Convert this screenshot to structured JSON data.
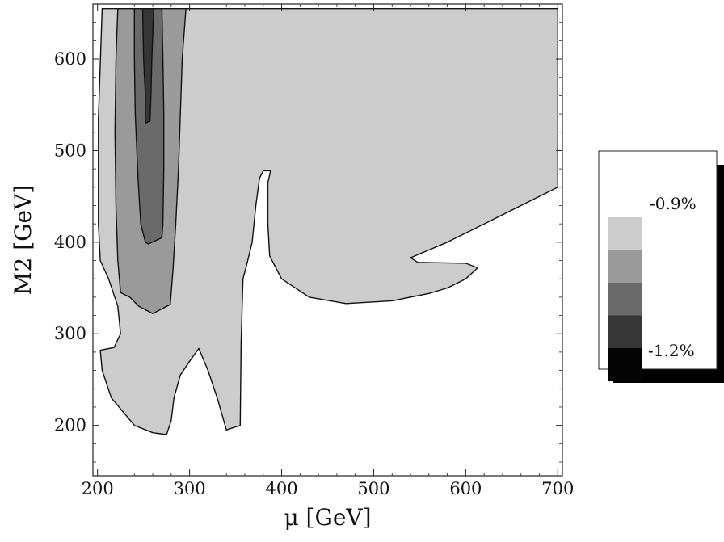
{
  "chart_data": {
    "type": "contour",
    "xlabel": "μ [GeV]",
    "ylabel": "M2 [GeV]",
    "xlim": [
      195,
      705
    ],
    "ylim": [
      145,
      660
    ],
    "xticks": [
      200,
      300,
      400,
      500,
      600,
      700
    ],
    "yticks": [
      200,
      300,
      400,
      500,
      600
    ],
    "x_tick_labels": [
      "200",
      "300",
      "400",
      "500",
      "600",
      "700"
    ],
    "y_tick_labels": [
      "200",
      "300",
      "400",
      "500",
      "600"
    ],
    "legend": {
      "placement": "right",
      "top_label": "-0.9%",
      "bottom_label": "-1.2%",
      "levels": [
        {
          "color": "#cccccc"
        },
        {
          "color": "#9a9a9a"
        },
        {
          "color": "#6a6a6a"
        },
        {
          "color": "#363636"
        },
        {
          "color": "#050505"
        }
      ]
    },
    "contour_regions": [
      {
        "level": 0,
        "color": "#cccccc",
        "points": [
          [
            205,
            655
          ],
          [
            700,
            655
          ],
          [
            700,
            460
          ],
          [
            660,
            440
          ],
          [
            620,
            420
          ],
          [
            580,
            400
          ],
          [
            540,
            383
          ],
          [
            548,
            378
          ],
          [
            600,
            377
          ],
          [
            613,
            372
          ],
          [
            600,
            360
          ],
          [
            580,
            350
          ],
          [
            560,
            344
          ],
          [
            520,
            336
          ],
          [
            470,
            333
          ],
          [
            430,
            340
          ],
          [
            400,
            360
          ],
          [
            387,
            385
          ],
          [
            385,
            420
          ],
          [
            385,
            465
          ],
          [
            388,
            478
          ],
          [
            380,
            478
          ],
          [
            376,
            470
          ],
          [
            372,
            440
          ],
          [
            368,
            400
          ],
          [
            362,
            375
          ],
          [
            358,
            360
          ],
          [
            356,
            290
          ],
          [
            355,
            200
          ],
          [
            340,
            195
          ],
          [
            330,
            230
          ],
          [
            320,
            260
          ],
          [
            310,
            284
          ],
          [
            300,
            270
          ],
          [
            290,
            255
          ],
          [
            283,
            230
          ],
          [
            280,
            205
          ],
          [
            275,
            190
          ],
          [
            260,
            192
          ],
          [
            240,
            200
          ],
          [
            215,
            230
          ],
          [
            205,
            260
          ],
          [
            203,
            282
          ],
          [
            218,
            285
          ],
          [
            225,
            300
          ],
          [
            222,
            330
          ],
          [
            212,
            360
          ],
          [
            203,
            380
          ],
          [
            201,
            420
          ],
          [
            201,
            535
          ],
          [
            205,
            655
          ]
        ]
      },
      {
        "level": 1,
        "color": "#9a9a9a",
        "points": [
          [
            222,
            655
          ],
          [
            296,
            655
          ],
          [
            292,
            600
          ],
          [
            290,
            540
          ],
          [
            288,
            480
          ],
          [
            285,
            420
          ],
          [
            282,
            370
          ],
          [
            279,
            332
          ],
          [
            260,
            322
          ],
          [
            245,
            330
          ],
          [
            235,
            340
          ],
          [
            225,
            345
          ],
          [
            222,
            380
          ],
          [
            220,
            440
          ],
          [
            219,
            520
          ],
          [
            220,
            600
          ],
          [
            222,
            655
          ]
        ]
      },
      {
        "level": 2,
        "color": "#6a6a6a",
        "points": [
          [
            240,
            655
          ],
          [
            270,
            655
          ],
          [
            271,
            600
          ],
          [
            272,
            540
          ],
          [
            272,
            480
          ],
          [
            271,
            420
          ],
          [
            270,
            405
          ],
          [
            255,
            398
          ],
          [
            252,
            400
          ],
          [
            247,
            420
          ],
          [
            244,
            470
          ],
          [
            241,
            540
          ],
          [
            240,
            600
          ],
          [
            240,
            655
          ]
        ]
      },
      {
        "level": 3,
        "color": "#363636",
        "points": [
          [
            249,
            655
          ],
          [
            261,
            655
          ],
          [
            259,
            600
          ],
          [
            258,
            560
          ],
          [
            257,
            532
          ],
          [
            252,
            530
          ],
          [
            252,
            560
          ],
          [
            250,
            600
          ],
          [
            249,
            655
          ]
        ]
      }
    ]
  }
}
